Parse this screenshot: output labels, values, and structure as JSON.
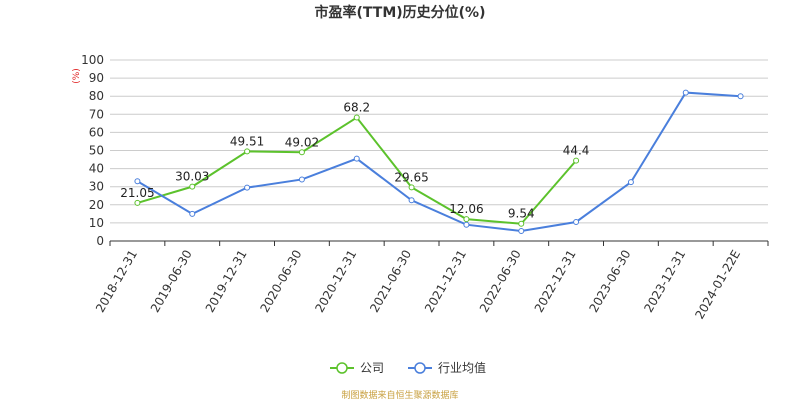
{
  "chart_data": {
    "type": "line",
    "title": "市盈率(TTM)历史分位(%)",
    "y_unit": "(%)",
    "ylim": [
      0,
      100
    ],
    "y_ticks": [
      0,
      10,
      20,
      30,
      40,
      50,
      60,
      70,
      80,
      90,
      100
    ],
    "grid": "horizontal",
    "legend_position": "bottom-center",
    "categories": [
      "2018-12-31",
      "2019-06-30",
      "2019-12-31",
      "2020-06-30",
      "2020-12-31",
      "2021-06-30",
      "2021-12-31",
      "2022-06-30",
      "2022-12-31",
      "2023-06-30",
      "2023-12-31",
      "2024-01-22E"
    ],
    "series": [
      {
        "name": "公司",
        "color": "#5cc22c",
        "values": [
          21.05,
          30.03,
          49.51,
          49.02,
          68.2,
          29.65,
          12.06,
          9.54,
          44.4,
          null,
          null,
          null
        ],
        "labels": [
          "21.05",
          "30.03",
          "49.51",
          "49.02",
          "68.2",
          "29.65",
          "12.06",
          "9.54",
          "44.4",
          null,
          null,
          null
        ]
      },
      {
        "name": "行业均值",
        "color": "#4a7fdc",
        "values": [
          33,
          15,
          29.5,
          34,
          45.5,
          22.5,
          9,
          5.5,
          10.5,
          32.5,
          82,
          80
        ],
        "labels": null
      }
    ],
    "source_note": "制图数据来自恒生聚源数据库"
  }
}
